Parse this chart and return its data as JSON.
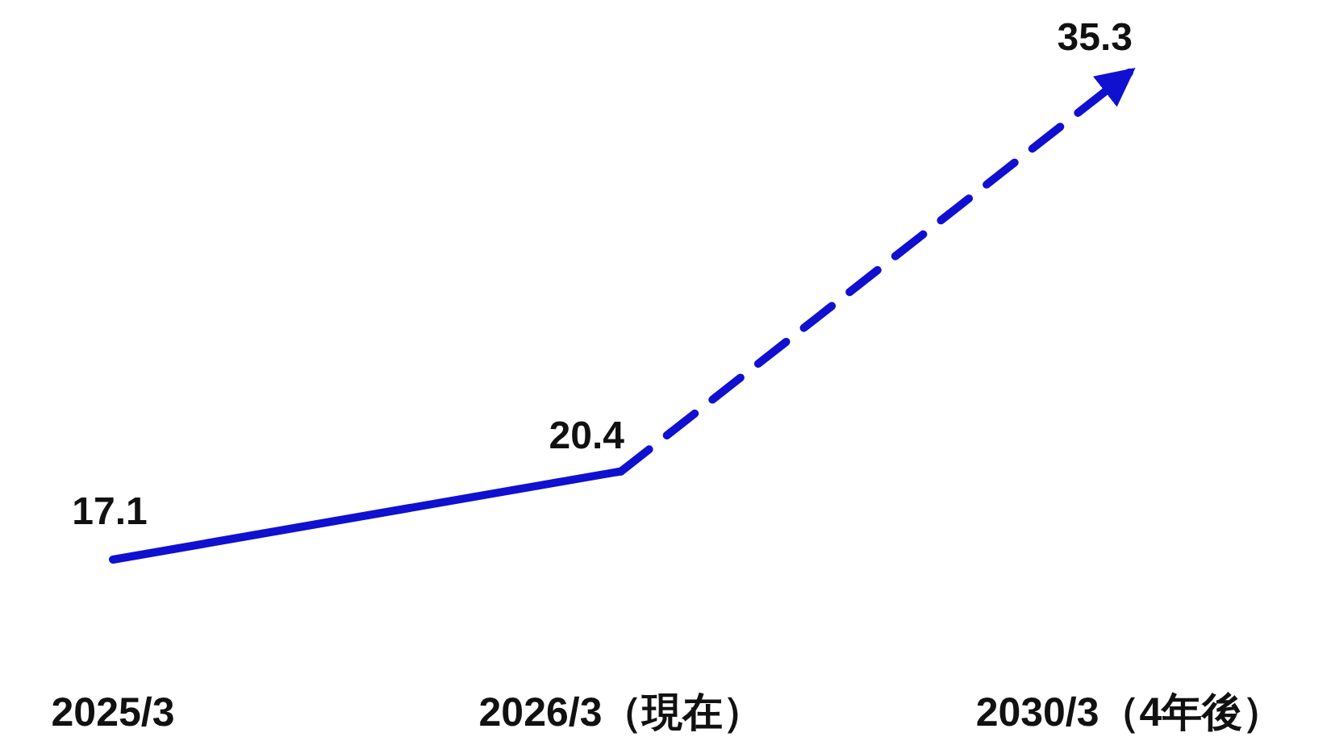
{
  "chart_data": {
    "type": "line",
    "categories": [
      "2025/3",
      "2026/3（現在）",
      "2030/3（4年後）"
    ],
    "tick_labels": "x",
    "series": [
      {
        "color": "#1010d0",
        "line_style": "solid",
        "values": [
          17.1,
          20.4,
          null
        ],
        "value_labels": [
          "17.1",
          "20.4",
          null
        ]
      },
      {
        "color": "#1010d0",
        "line_style": "dashed",
        "values": [
          null,
          20.4,
          35.3
        ],
        "value_labels": [
          null,
          null,
          "35.3"
        ]
      }
    ]
  }
}
